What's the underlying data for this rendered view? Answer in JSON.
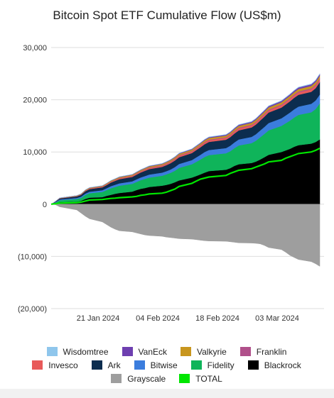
{
  "chart_data": {
    "type": "area",
    "title": "Bitcoin Spot ETF Cumulative Flow (US$m)",
    "xlabel": "",
    "ylabel": "",
    "ylim": [
      -20000,
      30000
    ],
    "y_ticks": [
      {
        "value": 30000,
        "label": "30,000"
      },
      {
        "value": 20000,
        "label": "20,000"
      },
      {
        "value": 10000,
        "label": "10,000"
      },
      {
        "value": 0,
        "label": "0"
      },
      {
        "value": -10000,
        "label": "(10,000)"
      },
      {
        "value": -20000,
        "label": "(20,000)"
      }
    ],
    "x_range": [
      "2024-01-10",
      "2024-03-14"
    ],
    "x_ticks": [
      {
        "date": "2024-01-21",
        "label": "21 Jan 2024"
      },
      {
        "date": "2024-02-04",
        "label": "04 Feb 2024"
      },
      {
        "date": "2024-02-18",
        "label": "18 Feb 2024"
      },
      {
        "date": "2024-03-03",
        "label": "03 Mar 2024"
      }
    ],
    "grid": "horizontal",
    "legend_position": "bottom",
    "dates": [
      "2024-01-11",
      "2024-01-12",
      "2024-01-16",
      "2024-01-17",
      "2024-01-18",
      "2024-01-19",
      "2024-01-22",
      "2024-01-23",
      "2024-01-24",
      "2024-01-25",
      "2024-01-26",
      "2024-01-29",
      "2024-01-30",
      "2024-01-31",
      "2024-02-01",
      "2024-02-02",
      "2024-02-05",
      "2024-02-06",
      "2024-02-07",
      "2024-02-08",
      "2024-02-09",
      "2024-02-12",
      "2024-02-13",
      "2024-02-14",
      "2024-02-15",
      "2024-02-16",
      "2024-02-20",
      "2024-02-21",
      "2024-02-22",
      "2024-02-23",
      "2024-02-26",
      "2024-02-27",
      "2024-02-28",
      "2024-02-29",
      "2024-03-01",
      "2024-03-04",
      "2024-03-05",
      "2024-03-06",
      "2024-03-07",
      "2024-03-08",
      "2024-03-11",
      "2024-03-12",
      "2024-03-13"
    ],
    "series": [
      {
        "name": "Blackrock",
        "color": "#000000",
        "values": [
          100,
          400,
          500,
          650,
          1000,
          1250,
          1350,
          1600,
          1800,
          2000,
          2150,
          2400,
          2700,
          2950,
          3100,
          3300,
          3550,
          3700,
          3900,
          4200,
          4550,
          5100,
          5400,
          5700,
          6050,
          6350,
          6600,
          6900,
          7350,
          7650,
          7900,
          8150,
          8550,
          9000,
          9450,
          10000,
          10300,
          10600,
          11000,
          11300,
          11600,
          11900,
          12400
        ]
      },
      {
        "name": "Fidelity",
        "color": "#0fb45a",
        "values": [
          200,
          350,
          500,
          550,
          750,
          850,
          1000,
          1100,
          1250,
          1300,
          1400,
          1500,
          1550,
          1650,
          1750,
          1800,
          1900,
          2000,
          2100,
          2200,
          2400,
          2550,
          2700,
          2850,
          3000,
          3050,
          3150,
          3250,
          3400,
          3600,
          3800,
          4000,
          4250,
          4450,
          4700,
          5000,
          5200,
          5400,
          5600,
          5800,
          6000,
          6300,
          6900
        ]
      },
      {
        "name": "Bitwise",
        "color": "#3b7ddd",
        "values": [
          100,
          150,
          200,
          230,
          270,
          290,
          330,
          360,
          400,
          420,
          450,
          470,
          500,
          520,
          550,
          580,
          600,
          620,
          650,
          700,
          750,
          800,
          850,
          900,
          950,
          980,
          1000,
          1050,
          1100,
          1150,
          1200,
          1250,
          1300,
          1350,
          1400,
          1450,
          1500,
          1550,
          1580,
          1600,
          1620,
          1650,
          1700
        ]
      },
      {
        "name": "Ark",
        "color": "#0c2d4f",
        "values": [
          100,
          200,
          300,
          350,
          450,
          500,
          550,
          600,
          700,
          750,
          800,
          850,
          900,
          950,
          1000,
          1050,
          1100,
          1150,
          1200,
          1250,
          1300,
          1350,
          1400,
          1450,
          1500,
          1550,
          1600,
          1650,
          1700,
          1750,
          1800,
          1850,
          1900,
          1950,
          2000,
          2050,
          2100,
          2150,
          2200,
          2250,
          2300,
          2350,
          2400
        ]
      },
      {
        "name": "Invesco",
        "color": "#e85a5a",
        "values": [
          20,
          40,
          60,
          80,
          100,
          110,
          120,
          130,
          140,
          150,
          160,
          170,
          180,
          190,
          200,
          210,
          220,
          230,
          240,
          250,
          260,
          270,
          280,
          290,
          300,
          310,
          320,
          330,
          340,
          350,
          360,
          370,
          380,
          390,
          400,
          410,
          420,
          430,
          440,
          450,
          460,
          470,
          480
        ]
      },
      {
        "name": "Franklin",
        "color": "#b0508a",
        "values": [
          10,
          15,
          20,
          25,
          30,
          35,
          40,
          45,
          50,
          55,
          60,
          65,
          70,
          75,
          80,
          85,
          90,
          95,
          100,
          105,
          110,
          115,
          120,
          125,
          130,
          135,
          140,
          145,
          150,
          155,
          160,
          165,
          170,
          175,
          180,
          185,
          190,
          195,
          200,
          205,
          210,
          215,
          220
        ]
      },
      {
        "name": "Valkyrie",
        "color": "#c8961e",
        "values": [
          20,
          40,
          60,
          80,
          100,
          110,
          120,
          130,
          140,
          150,
          160,
          170,
          180,
          190,
          200,
          210,
          220,
          230,
          240,
          250,
          260,
          270,
          280,
          290,
          300,
          310,
          320,
          330,
          340,
          350,
          360,
          370,
          380,
          390,
          400,
          410,
          420,
          430,
          440,
          450,
          460,
          470,
          480
        ]
      },
      {
        "name": "VanEck",
        "color": "#6e3fb0",
        "values": [
          10,
          15,
          20,
          25,
          30,
          35,
          40,
          45,
          50,
          55,
          60,
          65,
          70,
          75,
          80,
          85,
          90,
          95,
          100,
          105,
          110,
          120,
          130,
          140,
          150,
          160,
          170,
          180,
          190,
          200,
          210,
          220,
          230,
          240,
          250,
          260,
          270,
          280,
          290,
          300,
          310,
          320,
          330
        ]
      },
      {
        "name": "Wisdomtree",
        "color": "#8fc6ec",
        "values": [
          0,
          2,
          4,
          6,
          8,
          10,
          12,
          14,
          16,
          18,
          20,
          22,
          24,
          26,
          28,
          30,
          32,
          34,
          36,
          38,
          40,
          42,
          44,
          46,
          48,
          50,
          52,
          54,
          56,
          58,
          60,
          62,
          64,
          66,
          68,
          70,
          72,
          74,
          76,
          78,
          80,
          82,
          84
        ]
      },
      {
        "name": "Grayscale",
        "color": "#9e9e9e",
        "values": [
          -100,
          -500,
          -1100,
          -1700,
          -2300,
          -2800,
          -3400,
          -3900,
          -4400,
          -4800,
          -5100,
          -5300,
          -5500,
          -5700,
          -5900,
          -6000,
          -6150,
          -6300,
          -6400,
          -6500,
          -6600,
          -6700,
          -6800,
          -6900,
          -7000,
          -7050,
          -7100,
          -7200,
          -7300,
          -7400,
          -7450,
          -7500,
          -7600,
          -7900,
          -8300,
          -8700,
          -9200,
          -9800,
          -10200,
          -10600,
          -11000,
          -11400,
          -11900
        ]
      },
      {
        "name": "TOTAL",
        "color": "#00e600",
        "values": [
          100,
          200,
          300,
          400,
          600,
          800,
          900,
          1000,
          1100,
          1150,
          1250,
          1400,
          1500,
          1700,
          1800,
          1950,
          2100,
          2300,
          2600,
          2900,
          3400,
          4000,
          4400,
          4800,
          5000,
          5200,
          5500,
          5900,
          6200,
          6500,
          6800,
          7100,
          7400,
          7700,
          8100,
          8400,
          8800,
          9100,
          9400,
          9700,
          10000,
          10300,
          10700
        ]
      }
    ],
    "legend_order": [
      [
        "Wisdomtree",
        "VanEck",
        "Valkyrie",
        "Franklin"
      ],
      [
        "Invesco",
        "Ark",
        "Bitwise",
        "Fidelity",
        "Blackrock"
      ],
      [
        "Grayscale",
        "TOTAL"
      ]
    ]
  }
}
